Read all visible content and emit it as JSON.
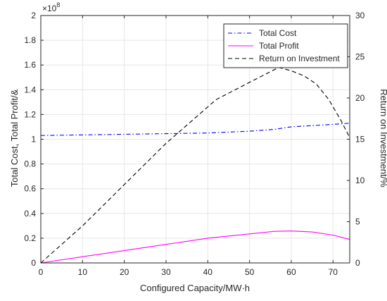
{
  "chart_data": {
    "type": "line",
    "title": "",
    "xlabel": "Configured Capacity/MW·h",
    "ylabel_left": "Total Cost,  Total Profit/&",
    "ylabel_right": "Return on Investment/%",
    "y_left_multiplier": "×10",
    "y_left_multiplier_exponent": "8",
    "xlim": [
      0,
      74
    ],
    "ylim_left": [
      0,
      2
    ],
    "ylim_right": [
      0,
      30
    ],
    "x_ticks": [
      0,
      10,
      20,
      30,
      40,
      50,
      60,
      70
    ],
    "y_left_ticks": [
      0,
      0.2,
      0.4,
      0.6,
      0.8,
      1,
      1.2,
      1.4,
      1.6,
      1.8,
      2
    ],
    "y_right_ticks": [
      0,
      5,
      10,
      15,
      20,
      25,
      30
    ],
    "grid": true,
    "legend_position": "top-right",
    "series": [
      {
        "name": "Total Cost",
        "axis": "left",
        "color": "#0000ff",
        "dash": "dash-dot",
        "x": [
          0,
          10,
          20,
          30,
          40,
          50,
          56,
          60,
          65,
          70,
          74
        ],
        "y": [
          1.03,
          1.035,
          1.04,
          1.045,
          1.05,
          1.065,
          1.08,
          1.1,
          1.11,
          1.12,
          1.13
        ]
      },
      {
        "name": "Total Profit",
        "axis": "left",
        "color": "#ff00ff",
        "dash": "solid",
        "x": [
          0,
          10,
          20,
          30,
          40,
          50,
          56,
          60,
          65,
          70,
          74
        ],
        "y": [
          0,
          0.05,
          0.1,
          0.15,
          0.2,
          0.235,
          0.255,
          0.258,
          0.25,
          0.225,
          0.19
        ]
      },
      {
        "name": "Return on Investment",
        "axis": "right",
        "color": "#000000",
        "dash": "dashed",
        "x": [
          0,
          10,
          20,
          30,
          42,
          50,
          57,
          60,
          63,
          66,
          69,
          72,
          74
        ],
        "y": [
          0,
          4.5,
          9.5,
          14.5,
          19.8,
          21.9,
          23.7,
          23.3,
          22.7,
          21.7,
          19.8,
          17.2,
          15.2
        ]
      }
    ]
  },
  "colors": {
    "background": "#ffffff",
    "axis": "#262626",
    "grid": "#e6e6e6",
    "text": "#262626"
  }
}
